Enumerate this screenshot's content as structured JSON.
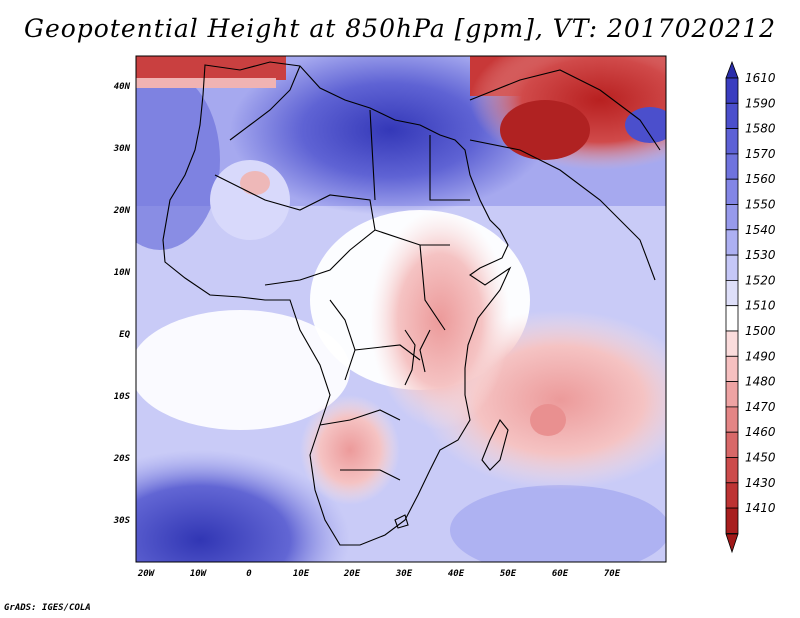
{
  "title": "Geopotential Height at 850hPa [gpm], VT: 2017020212",
  "footer": "GrADS: IGES/COLA",
  "lat_labels": [
    "40N",
    "30N",
    "20N",
    "10N",
    "EQ",
    "10S",
    "20S",
    "30S"
  ],
  "lon_labels": [
    "20W",
    "10W",
    "0",
    "10E",
    "20E",
    "30E",
    "40E",
    "50E",
    "60E",
    "70E"
  ],
  "colorbar": {
    "labels": [
      "1610",
      "1590",
      "1580",
      "1570",
      "1560",
      "1550",
      "1540",
      "1530",
      "1520",
      "1510",
      "1500",
      "1490",
      "1480",
      "1470",
      "1460",
      "1450",
      "1430",
      "1410"
    ],
    "colors": [
      "#3a3dc0",
      "#4b4fcc",
      "#5d61d6",
      "#6f73de",
      "#8386e6",
      "#979aec",
      "#adb0f2",
      "#c5c7f7",
      "#dedff9",
      "#ffffff",
      "#fbdcdc",
      "#f6c0c0",
      "#eea3a3",
      "#e48585",
      "#d86868",
      "#cc4b4b",
      "#bd3333",
      "#a81e1e"
    ]
  }
}
